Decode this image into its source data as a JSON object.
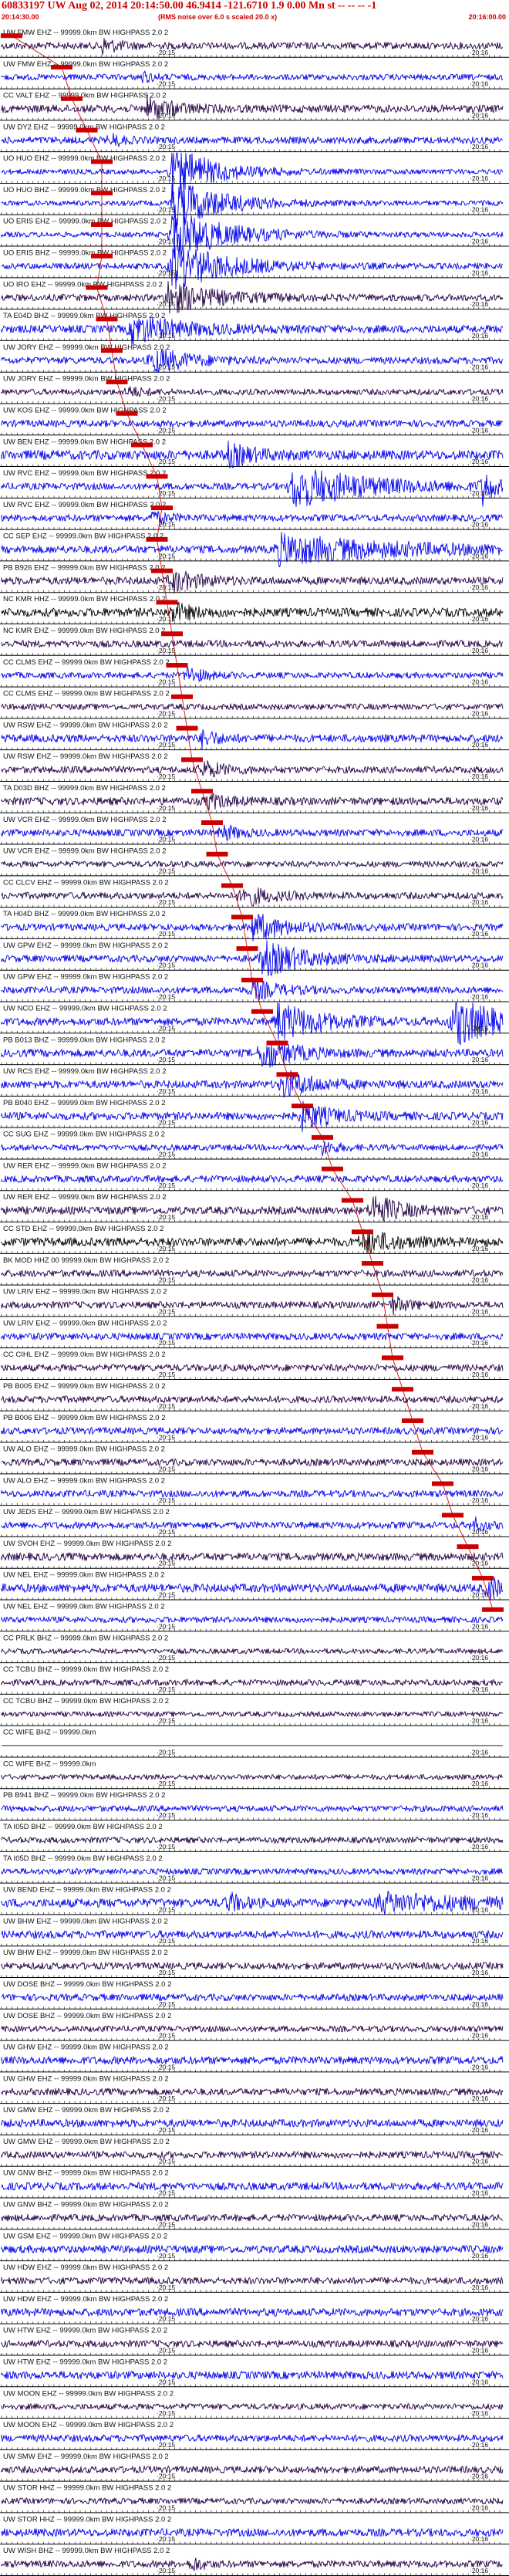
{
  "header": {
    "title": "60833197 UW Aug 02, 2014 20:14:50.00   46.9414 -121.6710  1.9 0.00 Mn st -- -- --   -1",
    "start_time": "20:14:30.00",
    "end_time": "20:16:00.00",
    "noise_note": "(RMS noise over 6.0 s scaled 20.0 x)"
  },
  "chart_data": {
    "type": "seismogram-record-section",
    "time_marks": [
      "20:15",
      "20:16"
    ],
    "colors": {
      "blue": "#0000ee",
      "dark": "#220044",
      "black": "#000000",
      "pick": "#cc0000",
      "grid": "#000000"
    },
    "traces": [
      {
        "label": "UW FMW EHZ -- 99999.0km BW  HIGHPASS  2.0  2",
        "color": "#220044",
        "amp": 0.4,
        "events": [
          {
            "t": 0.2,
            "a": 0.9,
            "w": 0.03
          }
        ]
      },
      {
        "label": "UW FMW EHZ -- 99999.0km BW  HIGHPASS  2.0  2",
        "color": "#0000ee",
        "amp": 0.35,
        "events": [
          {
            "t": 0.28,
            "a": 0.6,
            "w": 0.02
          }
        ]
      },
      {
        "label": "CC VALT EHZ -- 99999.0km BW  HIGHPASS  2.0  2",
        "color": "#220044",
        "amp": 0.45,
        "events": [
          {
            "t": 0.29,
            "a": 1.3,
            "w": 0.05
          }
        ]
      },
      {
        "label": "UW DY2 EHZ -- 99999.0km BW  HIGHPASS  2.0  2",
        "color": "#0000ee",
        "amp": 0.4,
        "events": [
          {
            "t": 0.22,
            "a": 0.7,
            "w": 0.02
          }
        ]
      },
      {
        "label": "UO HUO EHZ -- 99999.0km BW  HIGHPASS  2.0  2",
        "color": "#0000ee",
        "amp": 0.3,
        "events": [
          {
            "t": 0.34,
            "a": 3.0,
            "w": 0.08
          }
        ]
      },
      {
        "label": "UO HUO BHZ -- 99999.0km BW  HIGHPASS  2.0  2",
        "color": "#0000ee",
        "amp": 0.3,
        "events": [
          {
            "t": 0.34,
            "a": 3.0,
            "w": 0.09
          }
        ]
      },
      {
        "label": "UO ERIS EHZ -- 99999.0km BW  HIGHPASS  2.0  2",
        "color": "#0000ee",
        "amp": 0.3,
        "events": [
          {
            "t": 0.34,
            "a": 3.0,
            "w": 0.1
          }
        ]
      },
      {
        "label": "UO ERIS BHZ -- 99999.0km BW  HIGHPASS  2.0  2",
        "color": "#0000ee",
        "amp": 0.35,
        "events": [
          {
            "t": 0.34,
            "a": 2.8,
            "w": 0.1
          }
        ]
      },
      {
        "label": "UO IRO EHZ -- 99999.0km BW  HIGHPASS  2.0  2",
        "color": "#220044",
        "amp": 0.4,
        "events": [
          {
            "t": 0.33,
            "a": 1.8,
            "w": 0.09
          }
        ]
      },
      {
        "label": "TA E04D BHZ -- 99999.0km BW  HIGHPASS  2.0  2",
        "color": "#0000ee",
        "amp": 0.45,
        "events": [
          {
            "t": 0.26,
            "a": 1.5,
            "w": 0.1
          }
        ]
      },
      {
        "label": "UW JORY EHZ -- 99999.0km BW  HIGHPASS  2.0  2",
        "color": "#0000ee",
        "amp": 0.4,
        "events": [
          {
            "t": 0.3,
            "a": 1.4,
            "w": 0.07
          }
        ]
      },
      {
        "label": "UW JORY EHZ -- 99999.0km BW  HIGHPASS  2.0  2",
        "color": "#220044",
        "amp": 0.35,
        "events": [
          {
            "t": 0.25,
            "a": 0.6,
            "w": 0.03
          }
        ]
      },
      {
        "label": "UW KOS EHZ -- 99999.0km BW  HIGHPASS  2.0  2",
        "color": "#0000ee",
        "amp": 0.4,
        "events": []
      },
      {
        "label": "UW BEN EHZ -- 99999.0km BW  HIGHPASS  2.0  2",
        "color": "#0000ee",
        "amp": 0.55,
        "events": [
          {
            "t": 0.45,
            "a": 1.2,
            "w": 0.05
          }
        ]
      },
      {
        "label": "UW RVC EHZ -- 99999.0km BW  HIGHPASS  2.0  2",
        "color": "#0000ee",
        "amp": 0.4,
        "events": [
          {
            "t": 0.58,
            "a": 2.4,
            "w": 0.14
          },
          {
            "t": 0.96,
            "a": 2.0,
            "w": 0.02
          }
        ]
      },
      {
        "label": "UW RVC EHZ -- 99999.0km BW  HIGHPASS  2.0  2",
        "color": "#0000ee",
        "amp": 0.4,
        "events": [
          {
            "t": 0.3,
            "a": 0.7,
            "w": 0.03
          }
        ]
      },
      {
        "label": "CC SEP EHZ -- 99999.0km BW  HIGHPASS  2.0  2",
        "color": "#0000ee",
        "amp": 0.45,
        "events": [
          {
            "t": 0.55,
            "a": 1.6,
            "w": 0.22
          }
        ]
      },
      {
        "label": "PB B926 EHZ -- 99999.0km BW  HIGHPASS  2.0  2",
        "color": "#220044",
        "amp": 0.45,
        "events": [
          {
            "t": 0.34,
            "a": 1.2,
            "w": 0.05
          }
        ]
      },
      {
        "label": "NC KMR HHZ -- 99999.0km BW  HIGHPASS  2.0  2",
        "color": "#000000",
        "amp": 0.5,
        "events": [
          {
            "t": 0.34,
            "a": 1.0,
            "w": 0.04
          }
        ]
      },
      {
        "label": "NC KMR EHZ -- 99999.0km BW  HIGHPASS  2.0  2",
        "color": "#220044",
        "amp": 0.4,
        "events": []
      },
      {
        "label": "CC CLMS EHZ -- 99999.0km BW  HIGHPASS  2.0  2",
        "color": "#0000ee",
        "amp": 0.35,
        "events": [
          {
            "t": 0.37,
            "a": 1.0,
            "w": 0.03
          }
        ]
      },
      {
        "label": "CC CLMS EHZ -- 99999.0km BW  HIGHPASS  2.0  2",
        "color": "#220044",
        "amp": 0.35,
        "events": []
      },
      {
        "label": "UW RSW EHZ -- 99999.0km BW  HIGHPASS  2.0  2",
        "color": "#0000ee",
        "amp": 0.45,
        "events": [
          {
            "t": 0.4,
            "a": 0.9,
            "w": 0.03
          }
        ]
      },
      {
        "label": "UW RSW EHZ -- 99999.0km BW  HIGHPASS  2.0  2",
        "color": "#220044",
        "amp": 0.4,
        "events": [
          {
            "t": 0.4,
            "a": 1.0,
            "w": 0.04
          }
        ]
      },
      {
        "label": "TA D03D BHZ -- 99999.0km BW  HIGHPASS  2.0  2",
        "color": "#220044",
        "amp": 0.45,
        "events": [
          {
            "t": 0.41,
            "a": 0.8,
            "w": 0.04
          }
        ]
      },
      {
        "label": "UW VCR EHZ -- 99999.0km BW  HIGHPASS  2.0  2",
        "color": "#0000ee",
        "amp": 0.4,
        "events": [
          {
            "t": 0.44,
            "a": 0.9,
            "w": 0.03
          }
        ]
      },
      {
        "label": "UW VCR EHZ -- 99999.0km BW  HIGHPASS  2.0  2",
        "color": "#220044",
        "amp": 0.35,
        "events": []
      },
      {
        "label": "CC CLCV EHZ -- 99999.0km BW  HIGHPASS  2.0  2",
        "color": "#220044",
        "amp": 0.4,
        "events": [
          {
            "t": 0.48,
            "a": 1.2,
            "w": 0.05
          }
        ]
      },
      {
        "label": "TA H04D BHZ -- 99999.0km BW  HIGHPASS  2.0  2",
        "color": "#0000ee",
        "amp": 0.4,
        "events": [
          {
            "t": 0.5,
            "a": 1.6,
            "w": 0.06
          }
        ]
      },
      {
        "label": "UW GPW EHZ -- 99999.0km BW  HIGHPASS  2.0  2",
        "color": "#0000ee",
        "amp": 0.4,
        "events": [
          {
            "t": 0.52,
            "a": 2.0,
            "w": 0.08
          }
        ]
      },
      {
        "label": "UW GPW EHZ -- 99999.0km BW  HIGHPASS  2.0  2",
        "color": "#0000ee",
        "amp": 0.4,
        "events": [
          {
            "t": 0.5,
            "a": 1.1,
            "w": 0.05
          }
        ]
      },
      {
        "label": "UW NCO EHZ -- 99999.0km BW  HIGHPASS  2.0  2",
        "color": "#0000ee",
        "amp": 0.45,
        "events": [
          {
            "t": 0.55,
            "a": 2.2,
            "w": 0.08
          },
          {
            "t": 0.9,
            "a": 3.0,
            "w": 0.08
          }
        ]
      },
      {
        "label": "PB B013 BHZ -- 99999.0km BW  HIGHPASS  2.0  2",
        "color": "#0000ee",
        "amp": 0.45,
        "events": [
          {
            "t": 0.52,
            "a": 1.8,
            "w": 0.06
          }
        ]
      },
      {
        "label": "UW RCS EHZ -- 99999.0km BW  HIGHPASS  2.0  2",
        "color": "#0000ee",
        "amp": 0.45,
        "events": [
          {
            "t": 0.56,
            "a": 1.6,
            "w": 0.06
          }
        ]
      },
      {
        "label": "PB B040 EHZ -- 99999.0km BW  HIGHPASS  2.0  2",
        "color": "#0000ee",
        "amp": 0.45,
        "events": [
          {
            "t": 0.6,
            "a": 1.4,
            "w": 0.06
          }
        ]
      },
      {
        "label": "CC SUG EHZ -- 99999.0km BW  HIGHPASS  2.0  2",
        "color": "#0000ee",
        "amp": 0.35,
        "events": [
          {
            "t": 0.64,
            "a": 0.7,
            "w": 0.03
          }
        ]
      },
      {
        "label": "UW RER EHZ -- 99999.0km BW  HIGHPASS  2.0  2",
        "color": "#0000ee",
        "amp": 0.4,
        "events": []
      },
      {
        "label": "UW RER EHZ -- 99999.0km BW  HIGHPASS  2.0  2",
        "color": "#220044",
        "amp": 0.45,
        "events": [
          {
            "t": 0.74,
            "a": 1.8,
            "w": 0.05
          }
        ]
      },
      {
        "label": "CC STD EHZ -- 99999.0km BW  HIGHPASS  2.0  2",
        "color": "#000000",
        "amp": 0.5,
        "events": [
          {
            "t": 0.72,
            "a": 1.3,
            "w": 0.06
          }
        ]
      },
      {
        "label": "BK MOD HHZ 00 99999.0km BW  HIGHPASS  2.0  2",
        "color": "#220044",
        "amp": 0.4,
        "events": []
      },
      {
        "label": "UW LRIV EHZ -- 99999.0km BW  HIGHPASS  2.0  2",
        "color": "#220044",
        "amp": 0.4,
        "events": [
          {
            "t": 0.78,
            "a": 0.9,
            "w": 0.03
          }
        ]
      },
      {
        "label": "UW LRIV EHZ -- 99999.0km BW  HIGHPASS  2.0  2",
        "color": "#0000ee",
        "amp": 0.4,
        "events": []
      },
      {
        "label": "CC CIHL EHZ -- 99999.0km BW  HIGHPASS  2.0  2",
        "color": "#220044",
        "amp": 0.4,
        "events": []
      },
      {
        "label": "PB B005 EHZ -- 99999.0km BW  HIGHPASS  2.0  2",
        "color": "#220044",
        "amp": 0.4,
        "events": []
      },
      {
        "label": "PB B006 EHZ -- 99999.0km BW  HIGHPASS  2.0  2",
        "color": "#0000ee",
        "amp": 0.4,
        "events": []
      },
      {
        "label": "UW ALO EHZ -- 99999.0km BW  HIGHPASS  2.0  2",
        "color": "#220044",
        "amp": 0.4,
        "events": []
      },
      {
        "label": "UW ALO EHZ -- 99999.0km BW  HIGHPASS  2.0  2",
        "color": "#0000ee",
        "amp": 0.4,
        "events": []
      },
      {
        "label": "UW JEDS EHZ -- 99999.0km BW  HIGHPASS  2.0  2",
        "color": "#0000ee",
        "amp": 0.4,
        "events": [
          {
            "t": 0.94,
            "a": 0.8,
            "w": 0.02
          }
        ]
      },
      {
        "label": "UW SVOH EHZ -- 99999.0km BW  HIGHPASS  2.0  2",
        "color": "#220044",
        "amp": 0.45,
        "events": []
      },
      {
        "label": "UW NEL EHZ -- 99999.0km BW  HIGHPASS  2.0  2",
        "color": "#0000ee",
        "amp": 0.5,
        "events": [
          {
            "t": 0.97,
            "a": 1.6,
            "w": 0.02
          }
        ]
      },
      {
        "label": "UW NEL EHZ -- 99999.0km BW  HIGHPASS  2.0  2",
        "color": "#0000ee",
        "amp": 0.35,
        "events": []
      },
      {
        "label": "CC PRLK BHZ -- 99999.0km BW  HIGHPASS  2.0  2",
        "color": "#220044",
        "amp": 0.3,
        "events": []
      },
      {
        "label": "CC TCBU BHZ -- 99999.0km BW  HIGHPASS  2.0  2",
        "color": "#220044",
        "amp": 0.35,
        "events": []
      },
      {
        "label": "CC TCBU BHZ -- 99999.0km BW  HIGHPASS  2.0  2",
        "color": "#220044",
        "amp": 0.3,
        "events": []
      },
      {
        "label": "CC WIFE BHZ -- 99999.0km",
        "color": "#000000",
        "amp": 0.0,
        "events": []
      },
      {
        "label": "CC WIFE BHZ -- 99999.0km",
        "color": "#220044",
        "amp": 0.3,
        "events": []
      },
      {
        "label": "PB B941 BHZ -- 99999.0km BW  HIGHPASS  2.0  2",
        "color": "#0000ee",
        "amp": 0.35,
        "events": []
      },
      {
        "label": "TA I05D BHZ -- 99999.0km BW  HIGHPASS  2.0  2",
        "color": "#220044",
        "amp": 0.35,
        "events": []
      },
      {
        "label": "TA I05D BHZ -- 99999.0km BW  HIGHPASS  2.0  2",
        "color": "#0000ee",
        "amp": 0.35,
        "events": []
      },
      {
        "label": "UW BEND EHZ -- 99999.0km BW  HIGHPASS  2.0  2",
        "color": "#0000ee",
        "amp": 0.5,
        "events": [
          {
            "t": 0.45,
            "a": 1.1,
            "w": 0.03
          },
          {
            "t": 0.75,
            "a": 1.0,
            "w": 0.2
          }
        ]
      },
      {
        "label": "UW BHW EHZ -- 99999.0km BW  HIGHPASS  2.0  2",
        "color": "#0000ee",
        "amp": 0.45,
        "events": []
      },
      {
        "label": "UW BHW EHZ -- 99999.0km BW  HIGHPASS  2.0  2",
        "color": "#220044",
        "amp": 0.4,
        "events": []
      },
      {
        "label": "UW DOSE BHZ -- 99999.0km BW  HIGHPASS  2.0  2",
        "color": "#0000ee",
        "amp": 0.4,
        "events": []
      },
      {
        "label": "UW DOSE BHZ -- 99999.0km BW  HIGHPASS  2.0  2",
        "color": "#220044",
        "amp": 0.35,
        "events": []
      },
      {
        "label": "UW GHW EHZ -- 99999.0km BW  HIGHPASS  2.0  2",
        "color": "#0000ee",
        "amp": 0.45,
        "events": []
      },
      {
        "label": "UW GHW EHZ -- 99999.0km BW  HIGHPASS  2.0  2",
        "color": "#220044",
        "amp": 0.4,
        "events": []
      },
      {
        "label": "UW GMW EHZ -- 99999.0km BW  HIGHPASS  2.0  2",
        "color": "#0000ee",
        "amp": 0.45,
        "events": []
      },
      {
        "label": "UW GMW EHZ -- 99999.0km BW  HIGHPASS  2.0  2",
        "color": "#220044",
        "amp": 0.4,
        "events": []
      },
      {
        "label": "UW GNW BHZ -- 99999.0km BW  HIGHPASS  2.0  2",
        "color": "#0000ee",
        "amp": 0.45,
        "events": []
      },
      {
        "label": "UW GNW BHZ -- 99999.0km BW  HIGHPASS  2.0  2",
        "color": "#220044",
        "amp": 0.4,
        "events": []
      },
      {
        "label": "UW GSM EHZ -- 99999.0km BW  HIGHPASS  2.0  2",
        "color": "#0000ee",
        "amp": 0.45,
        "events": []
      },
      {
        "label": "UW HDW EHZ -- 99999.0km BW  HIGHPASS  2.0  2",
        "color": "#220044",
        "amp": 0.4,
        "events": []
      },
      {
        "label": "UW HDW EHZ -- 99999.0km BW  HIGHPASS  2.0  2",
        "color": "#0000ee",
        "amp": 0.45,
        "events": []
      },
      {
        "label": "UW HTW EHZ -- 99999.0km BW  HIGHPASS  2.0  2",
        "color": "#220044",
        "amp": 0.4,
        "events": []
      },
      {
        "label": "UW HTW EHZ -- 99999.0km BW  HIGHPASS  2.0  2",
        "color": "#0000ee",
        "amp": 0.45,
        "events": []
      },
      {
        "label": "UW MOON EHZ -- 99999.0km BW  HIGHPASS  2.0  2",
        "color": "#220044",
        "amp": 0.35,
        "events": []
      },
      {
        "label": "UW MOON EHZ -- 99999.0km BW  HIGHPASS  2.0  2",
        "color": "#0000ee",
        "amp": 0.4,
        "events": []
      },
      {
        "label": "UW SMW EHZ -- 99999.0km BW  HIGHPASS  2.0  2",
        "color": "#220044",
        "amp": 0.4,
        "events": []
      },
      {
        "label": "UW STOR HHZ -- 99999.0km BW  HIGHPASS  2.0  2",
        "color": "#220044",
        "amp": 0.35,
        "events": []
      },
      {
        "label": "UW STOR HHZ -- 99999.0km BW  HIGHPASS  2.0  2",
        "color": "#0000ee",
        "amp": 0.45,
        "events": []
      },
      {
        "label": "UW WISH BHZ -- 99999.0km BW  HIGHPASS  2.0  2",
        "color": "#220044",
        "amp": 0.4,
        "events": [
          {
            "t": 0.38,
            "a": 0.8,
            "w": 0.02
          }
        ]
      }
    ],
    "pick_times": [
      0.02,
      0.12,
      0.14,
      0.17,
      0.2,
      0.2,
      0.2,
      0.2,
      0.19,
      0.21,
      0.22,
      0.23,
      0.25,
      0.28,
      0.31,
      0.32,
      0.31,
      0.32,
      0.33,
      0.34,
      0.35,
      0.36,
      0.37,
      0.38,
      0.4,
      0.42,
      0.43,
      0.46,
      0.48,
      0.49,
      0.5,
      0.52,
      0.55,
      0.57,
      0.6,
      0.64,
      0.66,
      0.7,
      0.72,
      0.74,
      0.76,
      0.77,
      0.78,
      0.8,
      0.82,
      0.84,
      0.88,
      0.9,
      0.93,
      0.96,
      0.98
    ]
  }
}
